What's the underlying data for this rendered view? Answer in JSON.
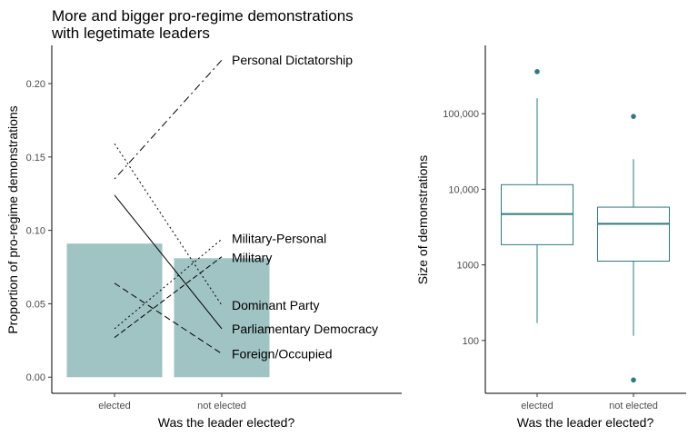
{
  "chart_data": [
    {
      "type": "bar",
      "title": "More and bigger pro-regime demonstrations\nwith legetimate leaders",
      "title_lines": [
        "More and bigger pro-regime demonstrations",
        "with legetimate leaders"
      ],
      "xlabel": "Was the leader elected?",
      "ylabel": "Proportion of pro-regime demonstrations",
      "categories": [
        "elected",
        "not elected"
      ],
      "values": [
        0.091,
        0.081
      ],
      "bar_color": "#a0c3c3",
      "ylim": [
        -0.011,
        0.226
      ],
      "yticks": [
        0.0,
        0.05,
        0.1,
        0.15,
        0.2
      ],
      "ytick_labels": [
        "0.00",
        "0.05",
        "0.10",
        "0.15",
        "0.20"
      ],
      "series": [
        {
          "name": "Personal Dictatorship",
          "values": [
            0.135,
            0.216
          ],
          "dash": "2,4,8,4"
        },
        {
          "name": "Military-Personal",
          "values": [
            0.033,
            0.094
          ],
          "dash": "2,3"
        },
        {
          "name": "Military",
          "values": [
            0.027,
            0.082
          ],
          "dash": "6,3"
        },
        {
          "name": "Dominant Party",
          "values": [
            0.159,
            0.049
          ],
          "dash": "2,3"
        },
        {
          "name": "Parliamentary Democracy",
          "values": [
            0.124,
            0.033
          ],
          "dash": ""
        },
        {
          "name": "Foreign/Occupied",
          "values": [
            0.064,
            0.016
          ],
          "dash": "7,4"
        }
      ]
    },
    {
      "type": "boxplot",
      "xlabel": "Was the leader elected?",
      "ylabel": "Size of demonstrations",
      "scale": "log10",
      "categories": [
        "elected",
        "not elected"
      ],
      "box_color": "#2f7a80",
      "ylim": [
        20,
        800000
      ],
      "yticks": [
        100,
        1000,
        10000,
        100000
      ],
      "ytick_labels": [
        "100",
        "1000",
        "10,000",
        "100,000"
      ],
      "boxes": [
        {
          "name": "elected",
          "whisker_low": 170,
          "q1": 1850,
          "median": 4700,
          "q3": 11500,
          "whisker_high": 160000,
          "outliers": [
            360000
          ]
        },
        {
          "name": "not elected",
          "whisker_low": 115,
          "q1": 1120,
          "median": 3500,
          "q3": 5800,
          "whisker_high": 25000,
          "outliers": [
            92000,
            30
          ]
        }
      ]
    }
  ]
}
